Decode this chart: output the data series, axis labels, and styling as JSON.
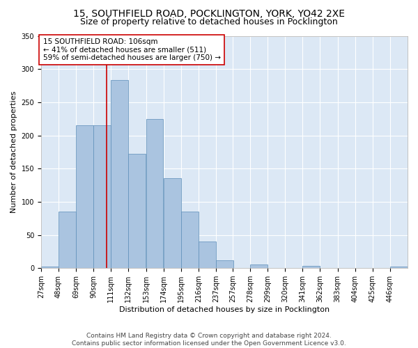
{
  "title1": "15, SOUTHFIELD ROAD, POCKLINGTON, YORK, YO42 2XE",
  "title2": "Size of property relative to detached houses in Pocklington",
  "xlabel": "Distribution of detached houses by size in Pocklington",
  "ylabel": "Number of detached properties",
  "footer1": "Contains HM Land Registry data © Crown copyright and database right 2024.",
  "footer2": "Contains public sector information licensed under the Open Government Licence v3.0.",
  "annotation_line1": "15 SOUTHFIELD ROAD: 106sqm",
  "annotation_line2": "← 41% of detached houses are smaller (511)",
  "annotation_line3": "59% of semi-detached houses are larger (750) →",
  "red_line_x": 106,
  "bar_edges": [
    27,
    48,
    69,
    90,
    111,
    132,
    153,
    174,
    195,
    216,
    237,
    257,
    278,
    299,
    320,
    341,
    362,
    383,
    404,
    425,
    446
  ],
  "bar_heights": [
    2,
    85,
    215,
    215,
    283,
    172,
    225,
    136,
    85,
    40,
    12,
    0,
    5,
    0,
    0,
    3,
    0,
    0,
    0,
    0,
    2
  ],
  "bar_color": "#aac4e0",
  "bar_edge_color": "#5b8db8",
  "ylim": [
    0,
    350
  ],
  "yticks": [
    0,
    50,
    100,
    150,
    200,
    250,
    300,
    350
  ],
  "red_line_color": "#cc0000",
  "background_color": "#dce8f5",
  "grid_color": "#ffffff",
  "annotation_box_color": "#ffffff",
  "annotation_box_edge": "#cc0000",
  "title_fontsize": 10,
  "subtitle_fontsize": 9,
  "axis_label_fontsize": 8,
  "tick_fontsize": 7,
  "annotation_fontsize": 7.5,
  "footer_fontsize": 6.5
}
